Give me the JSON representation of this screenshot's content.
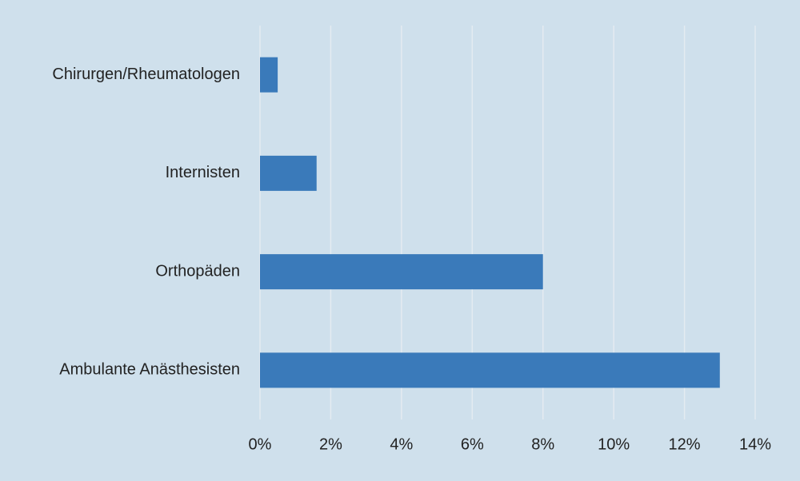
{
  "chart_data": {
    "type": "bar",
    "orientation": "horizontal",
    "categories": [
      "Chirurgen/Rheumatologen",
      "Internisten",
      "Orthopäden",
      "Ambulante Anästhesisten"
    ],
    "values": [
      0.5,
      1.6,
      8,
      13
    ],
    "color": "#3a7aba",
    "xlim": [
      0,
      14
    ],
    "xticks": [
      {
        "value": 0,
        "label": "0%"
      },
      {
        "value": 2,
        "label": "2%"
      },
      {
        "value": 4,
        "label": "4%"
      },
      {
        "value": 6,
        "label": "6%"
      },
      {
        "value": 8,
        "label": "8%"
      },
      {
        "value": 10,
        "label": "10%"
      },
      {
        "value": 12,
        "label": "12%"
      },
      {
        "value": 14,
        "label": "14%"
      }
    ],
    "grid": true
  }
}
